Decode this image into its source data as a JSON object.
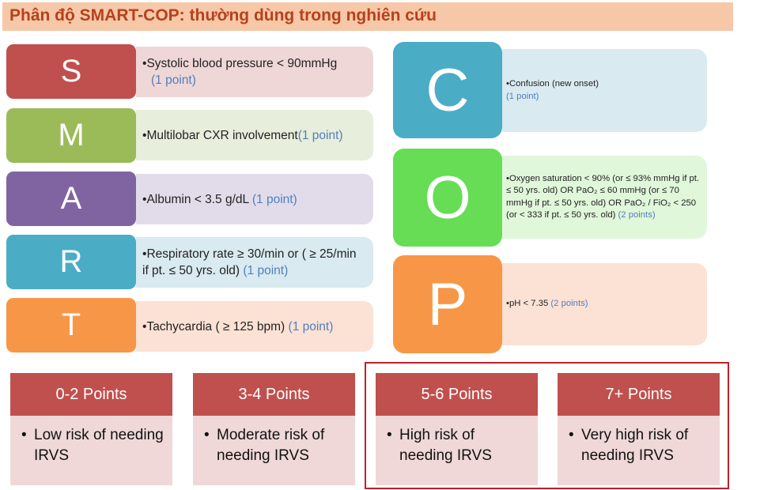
{
  "title": "Phân độ SMART-COP: thường dùng trong nghiên cứu",
  "colors": {
    "S": "#c0504d",
    "M": "#9bbb59",
    "A": "#8064a2",
    "R": "#4bacc6",
    "T": "#f79646",
    "C": "#4bacc6",
    "O": "#66dd55",
    "P": "#f79646",
    "risk_header": "#c0504d",
    "risk_body": "#efd8d7",
    "points_text": "#4f7fbf"
  },
  "smart": [
    {
      "letter": "S",
      "text": "Systolic blood pressure < 90mmHg",
      "points": "(1 point)"
    },
    {
      "letter": "M",
      "text": "Multilobar CXR involvement",
      "points": "(1 point)"
    },
    {
      "letter": "A",
      "text": "Albumin < 3.5 g/dL",
      "points": "(1 point)"
    },
    {
      "letter": "R",
      "text": "Respiratory rate ≥ 30/min or ( ≥ 25/min if pt. ≤ 50 yrs. old)",
      "points": "(1 point)"
    },
    {
      "letter": "T",
      "text": "Tachycardia ( ≥ 125 bpm)",
      "points": "(1 point)"
    }
  ],
  "cop": [
    {
      "letter": "C",
      "text": "Confusion (new onset)",
      "points": "(1 point)"
    },
    {
      "letter": "O",
      "text": "Oxygen saturation < 90% (or ≤ 93% mmHg if pt. ≤ 50 yrs. old) OR PaO₂ ≤ 60 mmHg (or ≤ 70 mmHg if pt. ≤ 50 yrs. old) OR PaO₂ / FiO₂ < 250 (or < 333 if pt. ≤ 50 yrs. old)",
      "points": "(2 points)"
    },
    {
      "letter": "P",
      "text": "pH < 7.35",
      "points": "(2 points)"
    }
  ],
  "bullet": "•",
  "risk": [
    {
      "header": "0-2 Points",
      "text": "Low risk of needing IRVS"
    },
    {
      "header": "3-4 Points",
      "text": "Moderate risk of needing IRVS"
    },
    {
      "header": "5-6 Points",
      "text": "High risk of needing IRVS"
    },
    {
      "header": "7+ Points",
      "text": "Very high risk of needing IRVS"
    }
  ]
}
